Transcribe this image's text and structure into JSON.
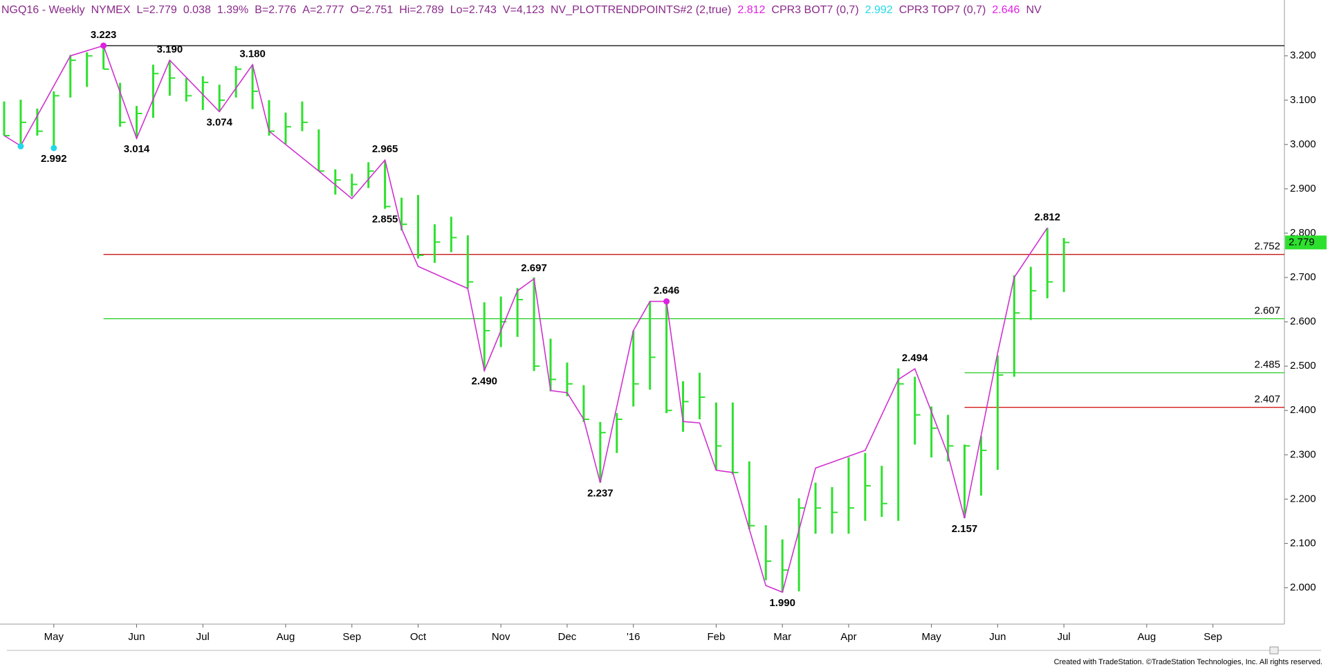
{
  "chart_data": {
    "type": "ohlc",
    "header": [
      {
        "text": "NGQ16 - Weekly",
        "color": "#8a2a8a"
      },
      {
        "text": "NYMEX",
        "color": "#8a2a8a"
      },
      {
        "text": "L=2.779",
        "color": "#8a2a8a"
      },
      {
        "text": "0.038",
        "color": "#8a2a8a"
      },
      {
        "text": "1.39%",
        "color": "#8a2a8a"
      },
      {
        "text": "B=2.776",
        "color": "#8a2a8a"
      },
      {
        "text": "A=2.777",
        "color": "#8a2a8a"
      },
      {
        "text": "O=2.751",
        "color": "#8a2a8a"
      },
      {
        "text": "Hi=2.789",
        "color": "#8a2a8a"
      },
      {
        "text": "Lo=2.743",
        "color": "#8a2a8a"
      },
      {
        "text": "V=4,123",
        "color": "#8a2a8a"
      },
      {
        "text": "NV_PLOTTRENDPOINTS#2 (2,true)",
        "color": "#8a2a8a"
      },
      {
        "text": "2.812",
        "color": "#e020e0"
      },
      {
        "text": "CPR3 BOT7 (0,7)",
        "color": "#8a2a8a"
      },
      {
        "text": "2.992",
        "color": "#22d8e8"
      },
      {
        "text": "CPR3 TOP7 (0,7)",
        "color": "#8a2a8a"
      },
      {
        "text": "2.646",
        "color": "#e020e0"
      },
      {
        "text": "NV",
        "color": "#8a2a8a"
      }
    ],
    "footer": "Created with TradeStation. ©TradeStation Technologies, Inc. All rights reserved.",
    "categories": [
      null,
      null,
      null,
      "May",
      null,
      null,
      null,
      null,
      "Jun",
      null,
      null,
      null,
      "Jul",
      null,
      null,
      null,
      null,
      "Aug",
      null,
      null,
      null,
      "Sep",
      null,
      null,
      null,
      "Oct",
      null,
      null,
      null,
      null,
      "Nov",
      null,
      null,
      null,
      "Dec",
      null,
      null,
      null,
      "'16",
      null,
      null,
      null,
      null,
      "Feb",
      null,
      null,
      null,
      "Mar",
      null,
      null,
      null,
      "Apr",
      null,
      null,
      null,
      null,
      "May",
      null,
      null,
      null,
      "Jun",
      null,
      null,
      null,
      "Jul",
      null,
      null,
      null,
      null,
      "Aug",
      null,
      null,
      null,
      "Sep",
      null,
      null,
      null,
      null
    ],
    "high": [
      3.097,
      3.101,
      3.081,
      3.12,
      3.202,
      3.208,
      3.223,
      3.139,
      3.087,
      3.18,
      3.19,
      3.15,
      3.154,
      3.135,
      3.177,
      3.18,
      3.1,
      3.072,
      3.097,
      3.034,
      2.944,
      2.934,
      2.96,
      2.963,
      2.88,
      2.886,
      2.82,
      2.837,
      2.795,
      2.644,
      2.657,
      2.676,
      2.7,
      2.562,
      2.508,
      2.457,
      2.374,
      2.394,
      2.58,
      2.646,
      2.646,
      2.466,
      2.485,
      2.418,
      2.418,
      2.285,
      2.141,
      2.109,
      2.202,
      2.237,
      2.227,
      2.294,
      2.304,
      2.275,
      2.495,
      2.476,
      2.409,
      2.39,
      2.323,
      2.342,
      2.524,
      2.705,
      2.724,
      2.812,
      2.789,
      null,
      null,
      null,
      null,
      null,
      null,
      null,
      null,
      null,
      null,
      null,
      null,
      null
    ],
    "low": [
      3.02,
      2.997,
      3.02,
      2.992,
      3.106,
      3.13,
      3.17,
      3.04,
      3.014,
      3.06,
      3.11,
      3.097,
      3.078,
      3.074,
      3.106,
      3.08,
      3.02,
      3.001,
      3.03,
      2.94,
      2.887,
      2.883,
      2.902,
      2.855,
      2.806,
      2.743,
      2.733,
      2.757,
      2.676,
      2.49,
      2.543,
      2.566,
      2.489,
      2.443,
      2.432,
      2.374,
      2.237,
      2.304,
      2.409,
      2.447,
      2.394,
      2.352,
      2.38,
      2.266,
      2.256,
      2.132,
      2.017,
      1.99,
      1.992,
      2.122,
      2.122,
      2.122,
      2.151,
      2.16,
      2.151,
      2.323,
      2.294,
      2.285,
      2.157,
      2.208,
      2.266,
      2.476,
      2.604,
      2.653,
      2.667,
      null,
      null,
      null,
      null,
      null,
      null,
      null,
      null,
      null,
      null,
      null,
      null,
      null
    ],
    "close": [
      3.02,
      3.05,
      3.03,
      3.11,
      3.19,
      3.2,
      3.17,
      3.05,
      3.07,
      3.16,
      3.15,
      3.11,
      3.14,
      3.1,
      3.17,
      3.12,
      3.03,
      3.04,
      3.05,
      2.94,
      2.92,
      2.91,
      2.94,
      2.86,
      2.82,
      2.75,
      2.78,
      2.79,
      2.69,
      2.58,
      2.6,
      2.65,
      2.5,
      2.47,
      2.46,
      2.38,
      2.35,
      2.38,
      2.46,
      2.52,
      2.4,
      2.42,
      2.43,
      2.32,
      2.26,
      2.14,
      2.06,
      2.04,
      2.18,
      2.18,
      2.17,
      2.18,
      2.23,
      2.19,
      2.46,
      2.39,
      2.36,
      2.32,
      2.32,
      2.31,
      2.48,
      2.62,
      2.67,
      2.69,
      2.779,
      null,
      null,
      null,
      null,
      null,
      null,
      null,
      null,
      null,
      null,
      null,
      null,
      null
    ],
    "bar_color": "#2ee02e",
    "zigzag": {
      "color": "#d030d0",
      "x": [
        0,
        1,
        4,
        6,
        8,
        10,
        13,
        15,
        16,
        19,
        21,
        23,
        24,
        25,
        28,
        29,
        31,
        32,
        33,
        34,
        35,
        36,
        38,
        39,
        40,
        41,
        42,
        43,
        44,
        46,
        47,
        49,
        52,
        54,
        55,
        57,
        58,
        60,
        61,
        63
      ],
      "values": [
        3.02,
        2.997,
        3.2,
        3.223,
        3.014,
        3.19,
        3.074,
        3.18,
        3.03,
        2.94,
        2.878,
        2.965,
        2.81,
        2.725,
        2.675,
        2.49,
        2.67,
        2.697,
        2.445,
        2.44,
        2.38,
        2.237,
        2.58,
        2.646,
        2.646,
        2.375,
        2.372,
        2.265,
        2.26,
        2.005,
        1.99,
        2.27,
        2.31,
        2.47,
        2.494,
        2.3,
        2.157,
        2.53,
        2.7,
        2.812
      ]
    },
    "annotations": [
      {
        "x": 6,
        "value": 3.223,
        "label": "3.223",
        "pos": "above"
      },
      {
        "x": 3,
        "value": 2.992,
        "label": "2.992",
        "pos": "below"
      },
      {
        "x": 8,
        "value": 3.014,
        "label": "3.014",
        "pos": "below"
      },
      {
        "x": 10,
        "value": 3.19,
        "label": "3.190",
        "pos": "above"
      },
      {
        "x": 13,
        "value": 3.074,
        "label": "3.074",
        "pos": "below"
      },
      {
        "x": 15,
        "value": 3.18,
        "label": "3.180",
        "pos": "above"
      },
      {
        "x": 23,
        "value": 2.965,
        "label": "2.965",
        "pos": "above"
      },
      {
        "x": 23,
        "value": 2.855,
        "label": "2.855",
        "pos": "below"
      },
      {
        "x": 32,
        "value": 2.697,
        "label": "2.697",
        "pos": "above"
      },
      {
        "x": 29,
        "value": 2.49,
        "label": "2.490",
        "pos": "below"
      },
      {
        "x": 36,
        "value": 2.237,
        "label": "2.237",
        "pos": "below"
      },
      {
        "x": 40,
        "value": 2.646,
        "label": "2.646",
        "pos": "above"
      },
      {
        "x": 47,
        "value": 1.99,
        "label": "1.990",
        "pos": "below"
      },
      {
        "x": 55,
        "value": 2.494,
        "label": "2.494",
        "pos": "above"
      },
      {
        "x": 58,
        "value": 2.157,
        "label": "2.157",
        "pos": "below"
      },
      {
        "x": 63,
        "value": 2.812,
        "label": "2.812",
        "pos": "above"
      }
    ],
    "dots": [
      {
        "x": 6,
        "value": 3.223,
        "color": "#e020e0"
      },
      {
        "x": 40,
        "value": 2.646,
        "color": "#e020e0"
      },
      {
        "x": 1,
        "value": 2.996,
        "color": "#22d8e8"
      },
      {
        "x": 3,
        "value": 2.992,
        "color": "#22d8e8"
      }
    ],
    "hlines": [
      {
        "value": 3.223,
        "from": 6,
        "color": "#000000",
        "labeled": false
      },
      {
        "value": 2.752,
        "from": 6,
        "color": "#c00000",
        "labeled": true
      },
      {
        "value": 2.607,
        "from": 6,
        "color": "#22cc22",
        "labeled": true
      },
      {
        "value": 2.485,
        "from": 58,
        "color": "#22cc22",
        "labeled": true
      },
      {
        "value": 2.407,
        "from": 58,
        "color": "#d00000",
        "labeled": true
      }
    ],
    "last_price": 2.779,
    "last_price_color": "#2ee02e",
    "ylim": [
      1.918,
      3.326
    ],
    "yticks": [
      {
        "value": 2.0,
        "label": "2.000"
      },
      {
        "value": 2.1,
        "label": "2.100"
      },
      {
        "value": 2.2,
        "label": "2.200"
      },
      {
        "value": 2.3,
        "label": "2.300"
      },
      {
        "value": 2.4,
        "label": "2.400"
      },
      {
        "value": 2.5,
        "label": "2.500"
      },
      {
        "value": 2.6,
        "label": "2.600"
      },
      {
        "value": 2.7,
        "label": "2.700"
      },
      {
        "value": 2.8,
        "label": "2.800"
      },
      {
        "value": 2.9,
        "label": "2.900"
      },
      {
        "value": 3.0,
        "label": "3.000"
      },
      {
        "value": 3.1,
        "label": "3.100"
      },
      {
        "value": 3.2,
        "label": "3.200"
      }
    ]
  }
}
